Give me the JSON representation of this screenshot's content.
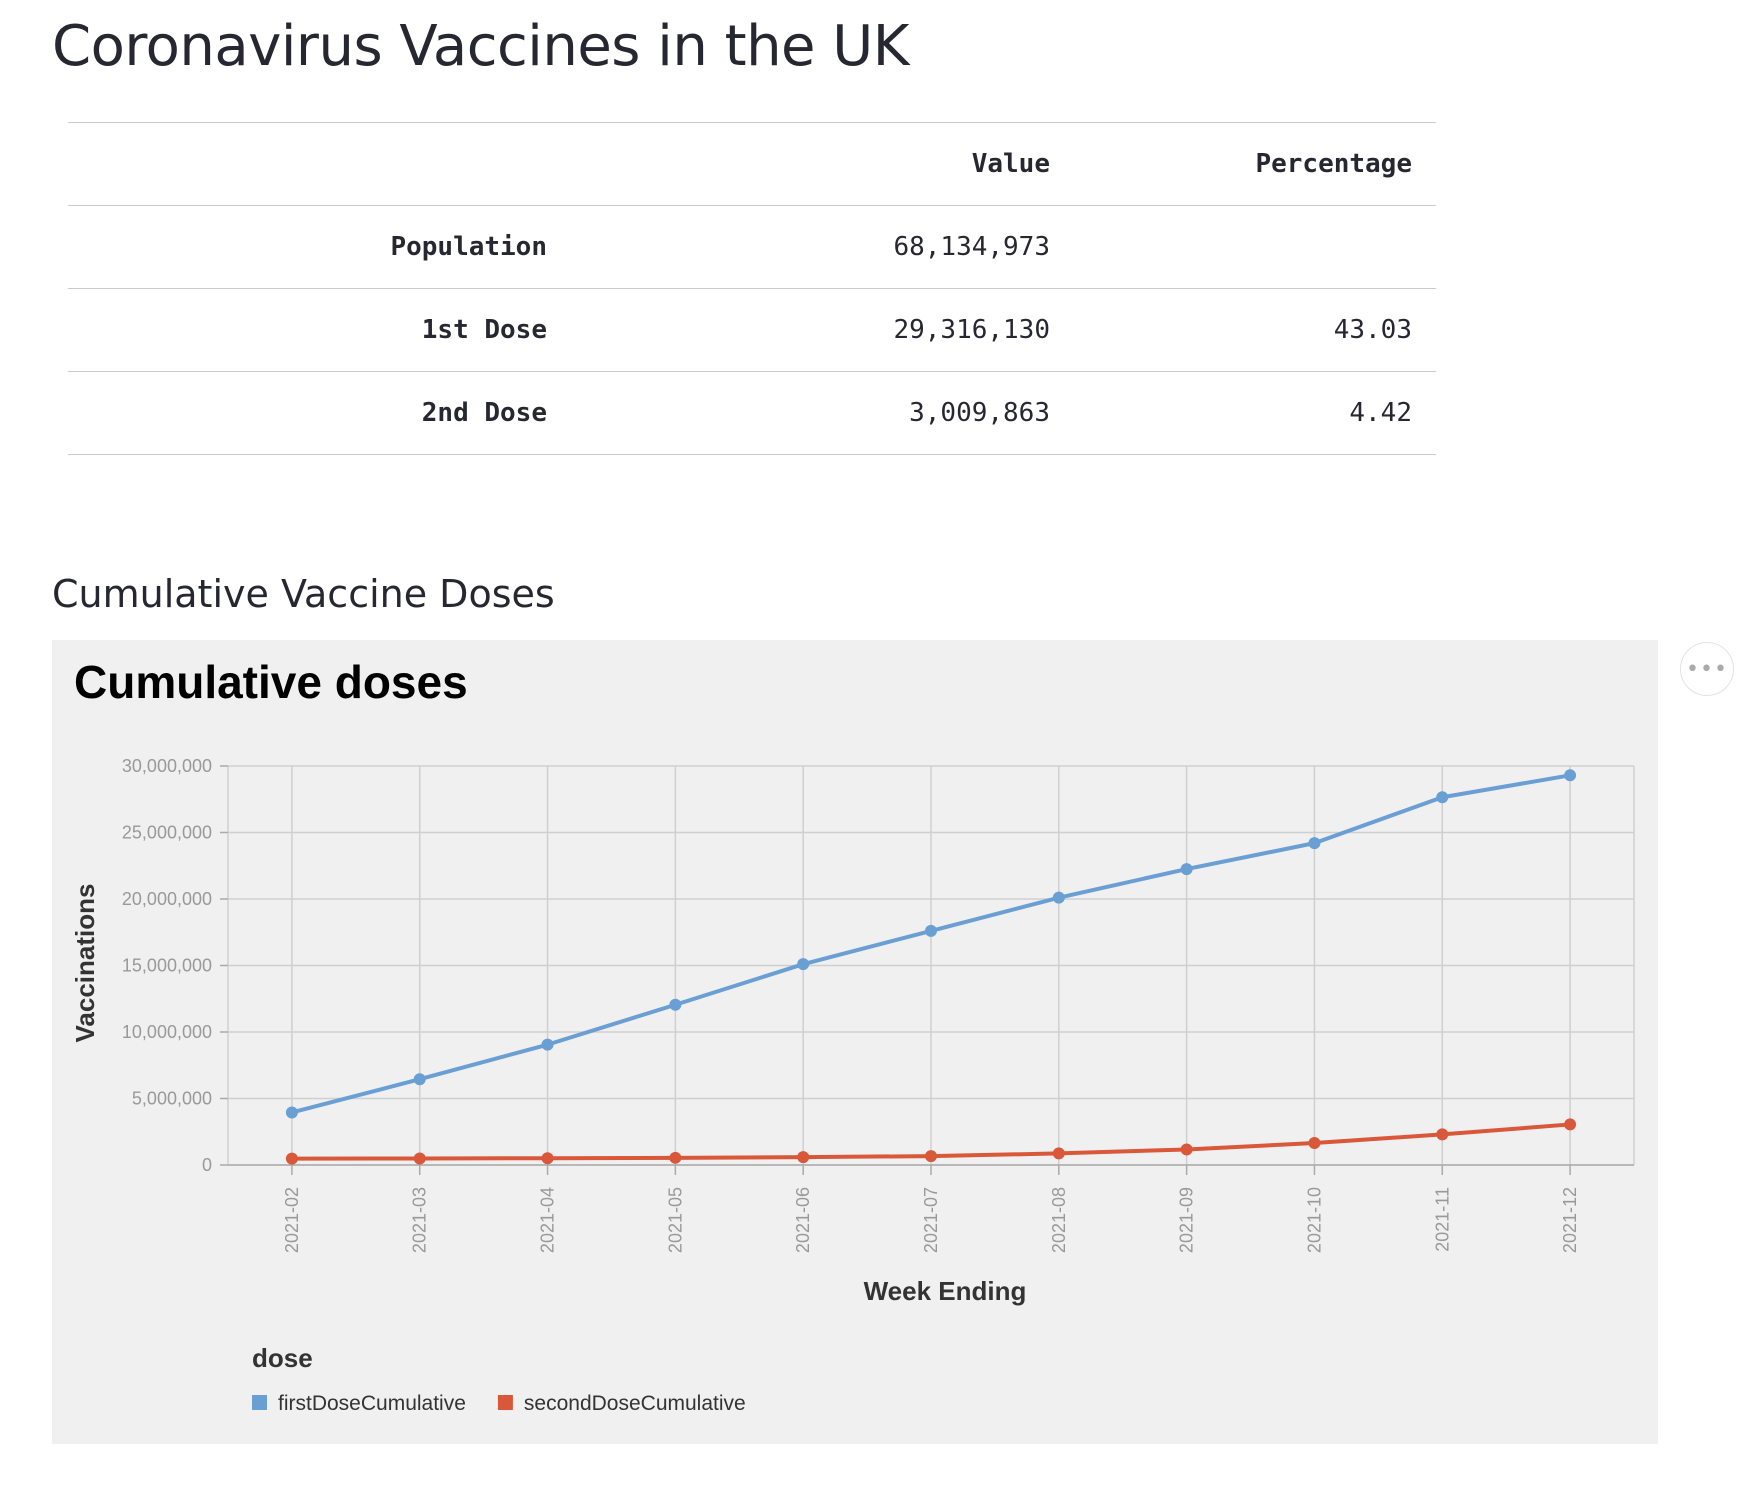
{
  "page": {
    "title": "Coronavirus Vaccines in the UK"
  },
  "table": {
    "headers": [
      "",
      "Value",
      "Percentage"
    ],
    "rows": [
      {
        "label": "Population",
        "value": "68,134,973",
        "percentage": ""
      },
      {
        "label": "1st Dose",
        "value": "29,316,130",
        "percentage": "43.03"
      },
      {
        "label": "2nd Dose",
        "value": "3,009,863",
        "percentage": "4.42"
      }
    ]
  },
  "section": {
    "title": "Cumulative Vaccine Doses"
  },
  "chart_menu": {
    "icon": "more-options-icon",
    "glyph": "•••"
  },
  "chart_data": {
    "type": "line",
    "title": "Cumulative doses",
    "xlabel": "Week Ending",
    "ylabel": "Vaccinations",
    "categories": [
      "2021-02",
      "2021-03",
      "2021-04",
      "2021-05",
      "2021-06",
      "2021-07",
      "2021-08",
      "2021-09",
      "2021-10",
      "2021-11",
      "2021-12"
    ],
    "ylim": [
      0,
      30000000
    ],
    "yticks": [
      0,
      5000000,
      10000000,
      15000000,
      20000000,
      25000000,
      30000000
    ],
    "ytick_labels": [
      "0",
      "5,000,000",
      "10,000,000",
      "15,000,000",
      "20,000,000",
      "25,000,000",
      "30,000,000"
    ],
    "grid": true,
    "legend_title": "dose",
    "legend_position": "bottom-left",
    "series": [
      {
        "name": "firstDoseCumulative",
        "color": "#6a9fd4",
        "values": [
          3950000,
          6450000,
          9050000,
          12050000,
          15100000,
          17600000,
          20100000,
          22250000,
          24200000,
          27650000,
          29300000
        ]
      },
      {
        "name": "secondDoseCumulative",
        "color": "#d9583a",
        "values": [
          480000,
          490000,
          510000,
          540000,
          590000,
          670000,
          870000,
          1170000,
          1650000,
          2300000,
          3050000
        ]
      }
    ]
  }
}
